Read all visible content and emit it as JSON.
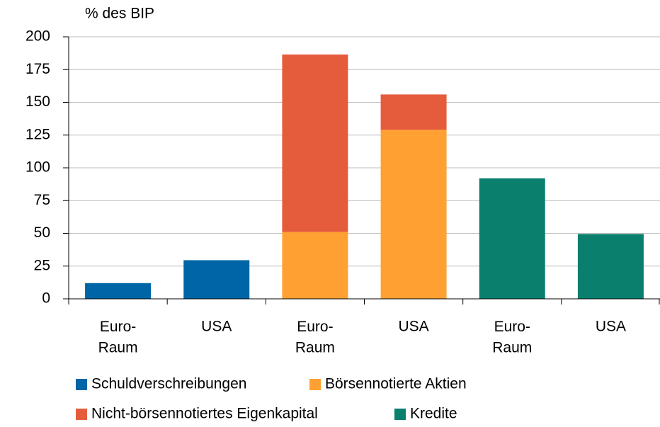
{
  "chart_data": {
    "type": "stacked_bar",
    "y_label": "% des BIP",
    "categories": [
      "Euro-\nRaum",
      "USA",
      "Euro-\nRaum",
      "USA",
      "Euro-\nRaum",
      "USA"
    ],
    "series": [
      {
        "name": "Schuldverschreibungen",
        "color": "#0065a6",
        "values": [
          12,
          29.5,
          null,
          null,
          null,
          null
        ]
      },
      {
        "name": "Börsennotierte Aktien",
        "color": "#ffa033",
        "values": [
          null,
          null,
          51,
          129,
          null,
          null
        ]
      },
      {
        "name": "Nicht-börsennotiertes Eigenkapital",
        "color": "#e55c3c",
        "values": [
          null,
          null,
          135.5,
          27,
          null,
          null
        ]
      },
      {
        "name": "Kredite",
        "color": "#0b7f6e",
        "values": [
          null,
          null,
          null,
          null,
          92,
          49.5
        ]
      }
    ],
    "ylim": [
      0,
      200
    ],
    "yticks": [
      0,
      25,
      50,
      75,
      100,
      125,
      150,
      175,
      200
    ],
    "grid": true
  }
}
